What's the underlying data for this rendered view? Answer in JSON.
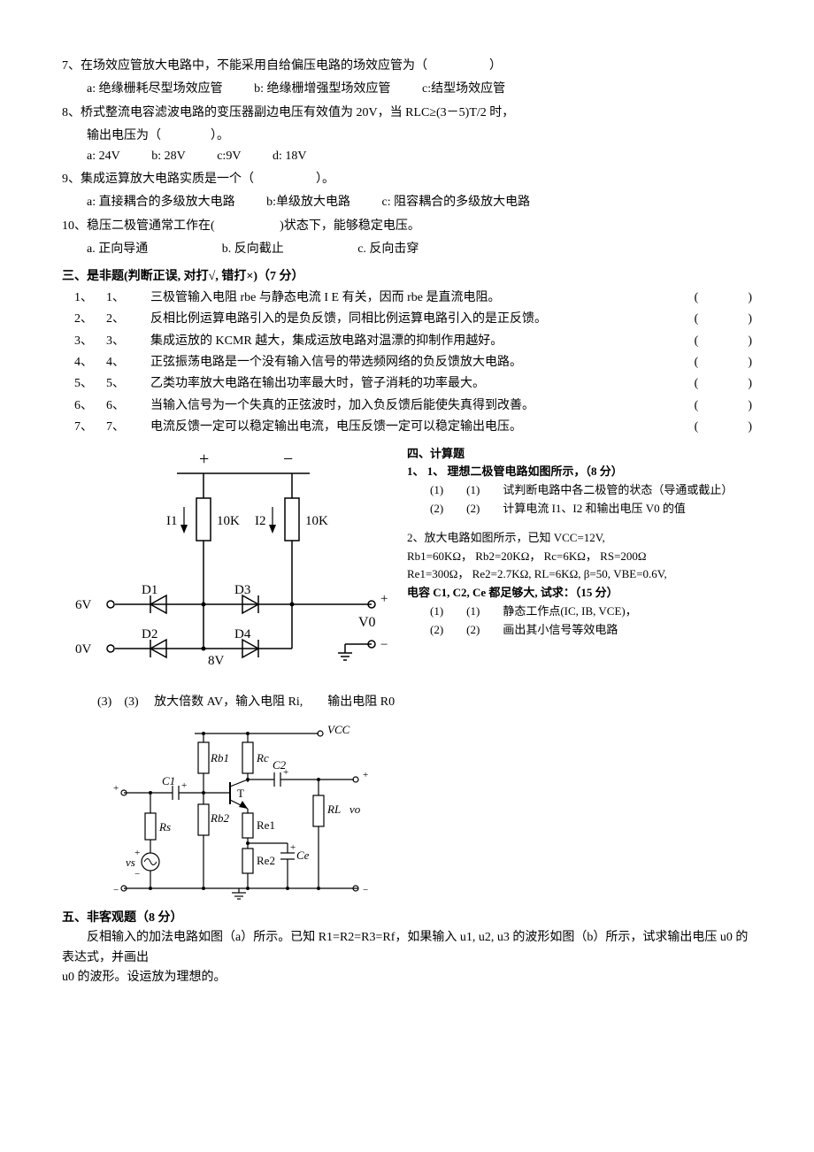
{
  "q7": {
    "text": "7、在场效应管放大电路中，不能采用自给偏压电路的场效应管为（　　　　　）",
    "opts": {
      "a": "a: 绝缘栅耗尽型场效应管",
      "b": "b: 绝缘栅增强型场效应管",
      "c": "c:结型场效应管"
    }
  },
  "q8": {
    "text": "8、桥式整流电容滤波电路的变压器副边电压有效值为 20V，当 RLC≥(3－5)T/2 时，",
    "text2": "输出电压为（　　　　）。",
    "opts": {
      "a": "a: 24V",
      "b": "b: 28V",
      "c": "c:9V",
      "d": "d: 18V"
    }
  },
  "q9": {
    "text": "9、集成运算放大电路实质是一个（　　　　　）。",
    "opts": {
      "a": "a: 直接耦合的多级放大电路",
      "b": "b:单级放大电路",
      "c": "c: 阻容耦合的多级放大电路"
    }
  },
  "q10": {
    "text": "10、稳压二极管通常工作在(　　　　 　)状态下，能够稳定电压。",
    "opts": {
      "a": "a. 正向导通",
      "b": "b. 反向截止",
      "c": "c. 反向击穿"
    }
  },
  "sec3_title": "三、是非题(判断正误, 对打√, 错打×)（7 分）",
  "tf": [
    {
      "n1": "1、",
      "n2": "1、",
      "t": "三极管输入电阻 rbe 与静态电流 I E 有关，因而 rbe 是直流电阻。"
    },
    {
      "n1": "2、",
      "n2": "2、",
      "t": "反相比例运算电路引入的是负反馈，同相比例运算电路引入的是正反馈。"
    },
    {
      "n1": "3、",
      "n2": "3、",
      "t": "集成运放的 KCMR 越大，集成运放电路对温漂的抑制作用越好。"
    },
    {
      "n1": "4、",
      "n2": "4、",
      "t": "正弦振荡电路是一个没有输入信号的带选频网络的负反馈放大电路。"
    },
    {
      "n1": "5、",
      "n2": "5、",
      "t": "乙类功率放大电路在输出功率最大时，管子消耗的功率最大。"
    },
    {
      "n1": "6、",
      "n2": "6、",
      "t": "当输入信号为一个失真的正弦波时，加入负反馈后能使失真得到改善。"
    },
    {
      "n1": "7、",
      "n2": "7、",
      "t": "电流反馈一定可以稳定输出电流，电压反馈一定可以稳定输出电压。"
    }
  ],
  "sec4_title": "四、计算题",
  "calc1": {
    "line1": "1、 1、  理想二极管电路如图所示，（8 分）",
    "line2": "(1)　　(1)　　试判断电路中各二极管的状态（导通或截止）",
    "line3": "(2)　　(2)　　计算电流 I1、I2 和输出电压 V0 的值"
  },
  "calc2": {
    "line1": "2、放大电路如图所示，已知 VCC=12V,",
    "line2": "Rb1=60KΩ，  Rb2=20KΩ，   Rc=6KΩ，  RS=200Ω",
    "line3": "Re1=300Ω，  Re2=2.7KΩ, RL=6KΩ, β=50,  VBE=0.6V,",
    "line4": "电容 C1, C2, Ce 都足够大, 试求：（15 分）",
    "line5": "(1)　　(1)　　静态工作点(IC, IB, VCE)，",
    "line6": "(2)　　(2)　　画出其小信号等效电路",
    "line7": "(3)　(3)　 放大倍数 AV，输入电阻 Ri,　　输出电阻 R0"
  },
  "sec5_title": "五、非客观题（8 分）",
  "sec5_body1": "　　反相输入的加法电路如图（a）所示。已知 R1=R2=R3=Rf，如果输入 u1, u2, u3 的波形如图（b）所示，试求输出电压 u0 的表达式，并画出",
  "sec5_body2": "u0 的波形。设运放为理想的。",
  "circuit1_labels": {
    "plus": "+",
    "minus": "−",
    "I1": "I1",
    "I2": "I2",
    "v10k_1": "10K",
    "v10k_2": "10K",
    "D1": "D1",
    "D2": "D2",
    "D3": "D3",
    "D4": "D4",
    "v6": "6V",
    "v0v": "0V",
    "v8": "8V",
    "V0": "V0",
    "out_plus": "+",
    "out_minus": "−"
  },
  "circuit2_labels": {
    "Vcc": "VCC",
    "Rc": "Rc",
    "Rb1": "Rb1",
    "Rb2": "Rb2",
    "C1": "C1",
    "C2": "C2",
    "T": "T",
    "Re1": "Re1",
    "Re2": "Re2",
    "Ce": "Ce",
    "RL": "RL",
    "vo": "vo",
    "vs": "vs",
    "Rs": "Rs",
    "plus": "+",
    "minus": "−"
  }
}
